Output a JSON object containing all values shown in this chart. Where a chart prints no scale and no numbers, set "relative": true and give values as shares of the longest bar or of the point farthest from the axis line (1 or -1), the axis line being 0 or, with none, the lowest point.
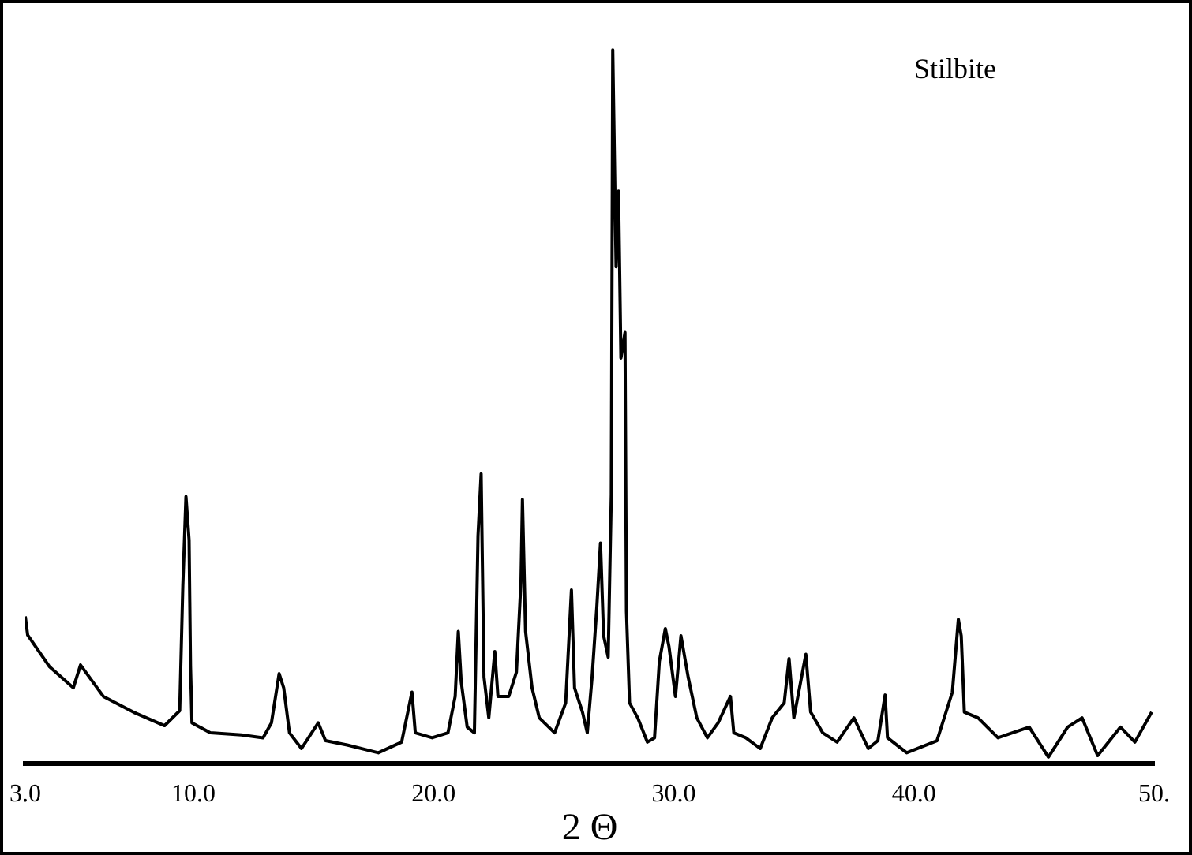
{
  "chart_data": {
    "type": "line",
    "relative": true,
    "xlabel": "2 Θ",
    "annotations": [
      "Stilbite"
    ],
    "xlim": [
      3,
      50
    ],
    "xticks": [
      {
        "value": 3,
        "label": "3.0"
      },
      {
        "value": 10,
        "label": "10.0"
      },
      {
        "value": 20,
        "label": "20.0"
      },
      {
        "value": 30,
        "label": "30.0"
      },
      {
        "value": 40,
        "label": "40.0"
      },
      {
        "value": 50,
        "label": "50."
      }
    ],
    "marker": "none",
    "line_style": "solid",
    "legend": false,
    "grid": false,
    "x": [
      3,
      3.1,
      4.0,
      5.0,
      5.3,
      6.25,
      7.5,
      8.8,
      9.43,
      9.56,
      9.69,
      9.82,
      9.88,
      9.94,
      10.7,
      12.0,
      12.9,
      13.25,
      13.57,
      13.76,
      14.0,
      14.5,
      15.2,
      15.5,
      16.4,
      17.7,
      18.67,
      19.1,
      19.24,
      19.94,
      20.6,
      20.9,
      21.03,
      21.15,
      21.4,
      21.7,
      21.85,
      21.98,
      22.1,
      22.3,
      22.55,
      22.68,
      23.13,
      23.45,
      23.64,
      23.7,
      23.83,
      24.1,
      24.4,
      25.04,
      25.5,
      25.74,
      25.87,
      26.2,
      26.4,
      26.6,
      26.8,
      26.95,
      27.08,
      27.27,
      27.4,
      27.46,
      27.6,
      27.7,
      27.8,
      27.97,
      28.03,
      28.16,
      28.5,
      28.9,
      29.2,
      29.4,
      29.65,
      29.8,
      30.07,
      30.3,
      30.6,
      30.96,
      31.4,
      31.85,
      32.36,
      32.5,
      33.0,
      33.6,
      34.1,
      34.6,
      34.8,
      35.0,
      35.5,
      35.7,
      36.2,
      36.8,
      37.5,
      38.1,
      38.5,
      38.8,
      38.9,
      39.7,
      40.96,
      41.6,
      41.85,
      41.97,
      42.1,
      42.67,
      43.5,
      44.8,
      45.6,
      46.4,
      47.0,
      47.65,
      48.6,
      49.2,
      49.9
    ],
    "series": [
      {
        "color": "#000000",
        "values": [
          0.206,
          0.18,
          0.136,
          0.106,
          0.138,
          0.094,
          0.072,
          0.053,
          0.074,
          0.249,
          0.374,
          0.313,
          0.136,
          0.057,
          0.043,
          0.04,
          0.036,
          0.057,
          0.126,
          0.106,
          0.043,
          0.021,
          0.057,
          0.032,
          0.026,
          0.015,
          0.03,
          0.1,
          0.043,
          0.036,
          0.043,
          0.094,
          0.185,
          0.115,
          0.051,
          0.043,
          0.319,
          0.406,
          0.121,
          0.064,
          0.157,
          0.094,
          0.094,
          0.128,
          0.255,
          0.37,
          0.185,
          0.106,
          0.064,
          0.043,
          0.085,
          0.243,
          0.106,
          0.072,
          0.043,
          0.121,
          0.221,
          0.309,
          0.179,
          0.149,
          0.377,
          1.0,
          0.696,
          0.802,
          0.568,
          0.604,
          0.213,
          0.085,
          0.064,
          0.03,
          0.036,
          0.143,
          0.189,
          0.164,
          0.094,
          0.179,
          0.121,
          0.064,
          0.036,
          0.057,
          0.094,
          0.043,
          0.036,
          0.021,
          0.064,
          0.085,
          0.147,
          0.064,
          0.153,
          0.072,
          0.043,
          0.03,
          0.064,
          0.021,
          0.032,
          0.096,
          0.036,
          0.015,
          0.032,
          0.1,
          0.202,
          0.179,
          0.072,
          0.064,
          0.036,
          0.051,
          0.009,
          0.051,
          0.064,
          0.011,
          0.051,
          0.03,
          0.072
        ]
      }
    ]
  }
}
